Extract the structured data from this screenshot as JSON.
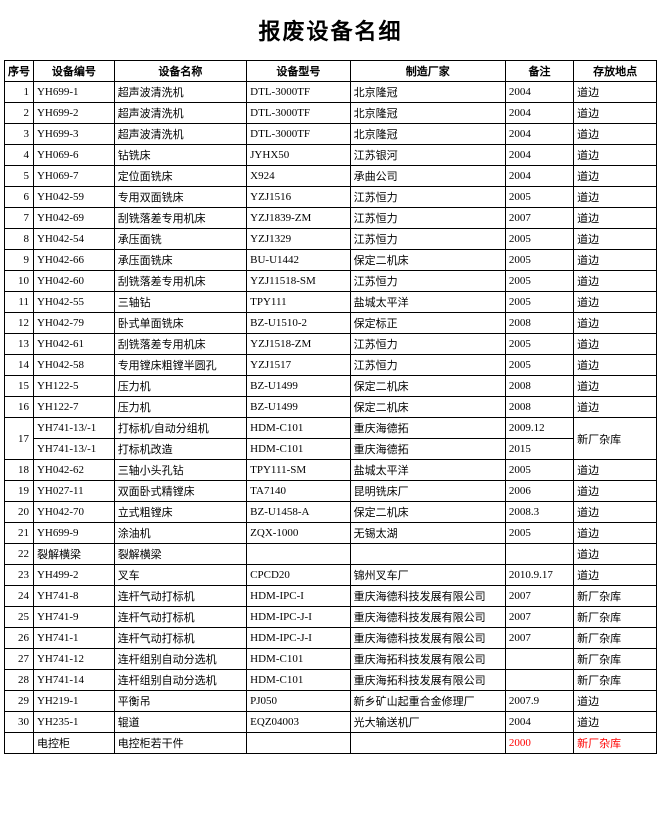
{
  "title": "报废设备名细",
  "columns": [
    "序号",
    "设备编号",
    "设备名称",
    "设备型号",
    "制造厂家",
    "备注",
    "存放地点"
  ],
  "rows": [
    {
      "idx": "1",
      "code": "YH699-1",
      "name": "超声波清洗机",
      "model": "DTL-3000TF",
      "maker": "北京隆冠",
      "note": "2004",
      "loc": "道边"
    },
    {
      "idx": "2",
      "code": "YH699-2",
      "name": "超声波清洗机",
      "model": "DTL-3000TF",
      "maker": "北京隆冠",
      "note": "2004",
      "loc": "道边"
    },
    {
      "idx": "3",
      "code": "YH699-3",
      "name": "超声波清洗机",
      "model": "DTL-3000TF",
      "maker": "北京隆冠",
      "note": "2004",
      "loc": "道边"
    },
    {
      "idx": "4",
      "code": "YH069-6",
      "name": "钻铣床",
      "model": "JYHX50",
      "maker": "江苏银河",
      "note": "2004",
      "loc": "道边"
    },
    {
      "idx": "5",
      "code": "YH069-7",
      "name": "定位面铣床",
      "model": "X924",
      "maker": "承曲公司",
      "note": "2004",
      "loc": "道边"
    },
    {
      "idx": "6",
      "code": "YH042-59",
      "name": "专用双面铣床",
      "model": "YZJ1516",
      "maker": "江苏恒力",
      "note": "2005",
      "loc": "道边"
    },
    {
      "idx": "7",
      "code": "YH042-69",
      "name": "刮铣落差专用机床",
      "model": "YZJ1839-ZM",
      "maker": "江苏恒力",
      "note": "2007",
      "loc": "道边"
    },
    {
      "idx": "8",
      "code": "YH042-54",
      "name": "承压面铣",
      "model": "YZJ1329",
      "maker": "江苏恒力",
      "note": "2005",
      "loc": "道边"
    },
    {
      "idx": "9",
      "code": "YH042-66",
      "name": "承压面铣床",
      "model": "BU-U1442",
      "maker": "保定二机床",
      "note": "2005",
      "loc": "道边"
    },
    {
      "idx": "10",
      "code": "YH042-60",
      "name": "刮铣落差专用机床",
      "model": "YZJ11518-SM",
      "maker": "江苏恒力",
      "note": "2005",
      "loc": "道边"
    },
    {
      "idx": "11",
      "code": "YH042-55",
      "name": "三轴钻",
      "model": "TPY111",
      "maker": "盐城太平洋",
      "note": "2005",
      "loc": "道边"
    },
    {
      "idx": "12",
      "code": "YH042-79",
      "name": "卧式单面铣床",
      "model": "BZ-U1510-2",
      "maker": "保定标正",
      "note": "2008",
      "loc": "道边"
    },
    {
      "idx": "13",
      "code": "YH042-61",
      "name": "刮铣落差专用机床",
      "model": "YZJ1518-ZM",
      "maker": "江苏恒力",
      "note": "2005",
      "loc": "道边"
    },
    {
      "idx": "14",
      "code": "YH042-58",
      "name": "专用镗床粗镗半圆孔",
      "model": "YZJ1517",
      "maker": "江苏恒力",
      "note": "2005",
      "loc": "道边"
    },
    {
      "idx": "15",
      "code": "YH122-5",
      "name": "压力机",
      "model": "BZ-U1499",
      "maker": "保定二机床",
      "note": "2008",
      "loc": "道边"
    },
    {
      "idx": "16",
      "code": "YH122-7",
      "name": "压力机",
      "model": "BZ-U1499",
      "maker": "保定二机床",
      "note": "2008",
      "loc": "道边"
    },
    {
      "idx": "17",
      "code": "YH741-13/-1",
      "name": "打标机/自动分组机",
      "model": "HDM-C101",
      "maker": "重庆海德拓",
      "note": "2009.12",
      "loc": "新厂杂库",
      "rowspan_idx": 2,
      "rowspan_loc": 2
    },
    {
      "idx": "",
      "code": "YH741-13/-1",
      "name": "打标机改造",
      "model": "HDM-C101",
      "maker": "重庆海德拓",
      "note": "2015",
      "loc": "",
      "skip_idx": true,
      "skip_loc": true
    },
    {
      "idx": "18",
      "code": "YH042-62",
      "name": "三轴小头孔钻",
      "model": "TPY111-SM",
      "maker": "盐城太平洋",
      "note": "2005",
      "loc": "道边"
    },
    {
      "idx": "19",
      "code": "YH027-11",
      "name": "双面卧式精镗床",
      "model": "TA7140",
      "maker": "昆明铣床厂",
      "note": "2006",
      "loc": "道边"
    },
    {
      "idx": "20",
      "code": "YH042-70",
      "name": "立式粗镗床",
      "model": "BZ-U1458-A",
      "maker": "保定二机床",
      "note": "2008.3",
      "loc": "道边"
    },
    {
      "idx": "21",
      "code": "YH699-9",
      "name": "涂油机",
      "model": "ZQX-1000",
      "maker": "无锡太湖",
      "note": "2005",
      "loc": "道边"
    },
    {
      "idx": "22",
      "code": "裂解横梁",
      "name": "裂解横梁",
      "model": "",
      "maker": "",
      "note": "",
      "loc": "道边"
    },
    {
      "idx": "23",
      "code": "YH499-2",
      "name": "叉车",
      "model": "CPCD20",
      "maker": "锦州叉车厂",
      "note": "2010.9.17",
      "loc": "道边"
    },
    {
      "idx": "24",
      "code": "YH741-8",
      "name": "连杆气动打标机",
      "model": "HDM-IPC-I",
      "maker": "重庆海德科技发展有限公司",
      "note": "2007",
      "loc": "新厂杂库"
    },
    {
      "idx": "25",
      "code": "YH741-9",
      "name": "连杆气动打标机",
      "model": "HDM-IPC-J-I",
      "maker": "重庆海德科技发展有限公司",
      "note": "2007",
      "loc": "新厂杂库"
    },
    {
      "idx": "26",
      "code": "YH741-1",
      "name": "连杆气动打标机",
      "model": "HDM-IPC-J-I",
      "maker": "重庆海德科技发展有限公司",
      "note": "2007",
      "loc": "新厂杂库"
    },
    {
      "idx": "27",
      "code": "YH741-12",
      "name": "连杆组别自动分选机",
      "model": "HDM-C101",
      "maker": "重庆海拓科技发展有限公司",
      "note": "",
      "loc": "新厂杂库"
    },
    {
      "idx": "28",
      "code": "YH741-14",
      "name": "连杆组别自动分选机",
      "model": "HDM-C101",
      "maker": "重庆海拓科技发展有限公司",
      "note": "",
      "loc": "新厂杂库"
    },
    {
      "idx": "29",
      "code": "YH219-1",
      "name": "平衡吊",
      "model": "PJ050",
      "maker": "新乡矿山起重合金修理厂",
      "note": "2007.9",
      "loc": "道边"
    },
    {
      "idx": "30",
      "code": "YH235-1",
      "name": "辊道",
      "model": "EQZ04003",
      "maker": "光大输送机厂",
      "note": "2004",
      "loc": "道边"
    },
    {
      "idx": "",
      "code": "电控柜",
      "name": "电控柜若干件",
      "model": "",
      "maker": "",
      "note": "2000",
      "loc": "新厂杂库",
      "red_note": true,
      "red_loc": true
    }
  ]
}
